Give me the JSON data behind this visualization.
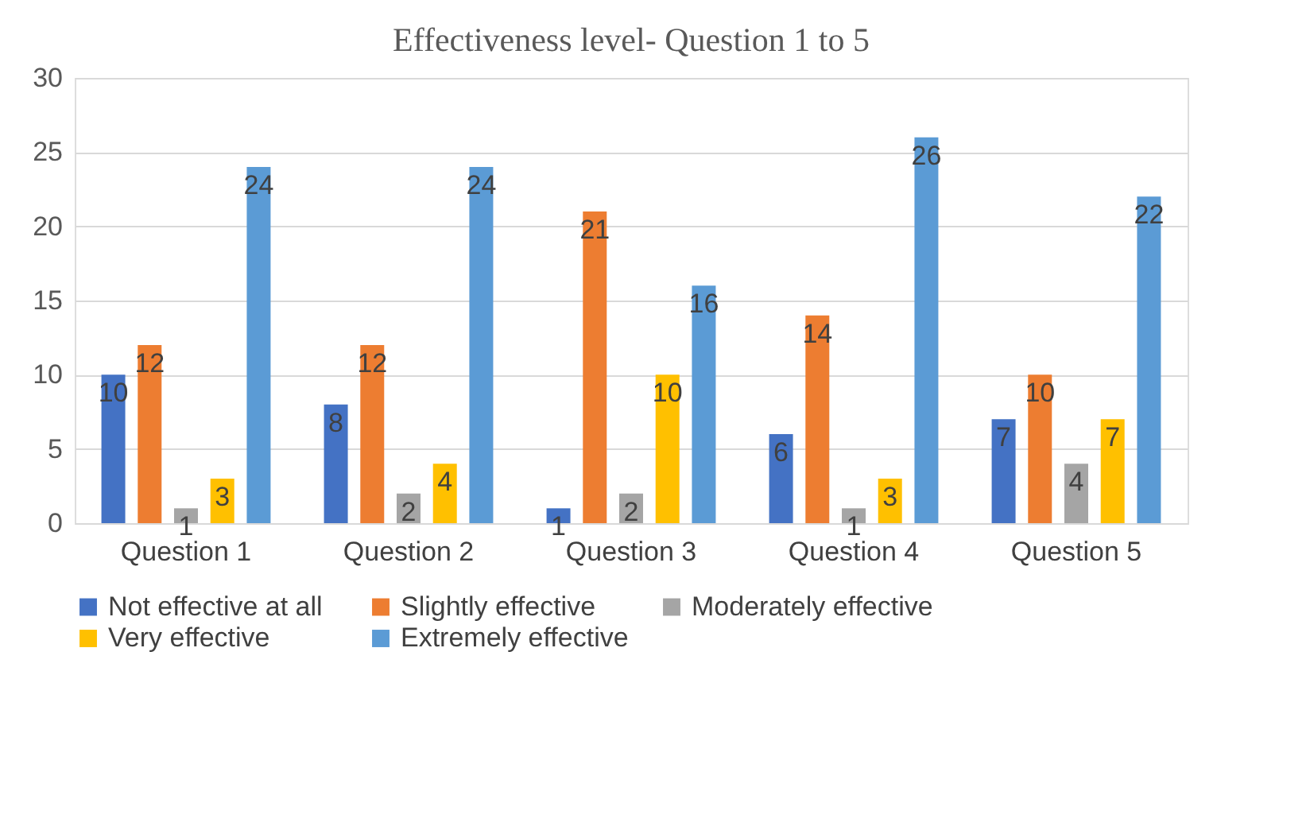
{
  "chart_data": {
    "type": "bar",
    "title": "Effectiveness level- Question 1 to 5",
    "categories": [
      "Question 1",
      "Question 2",
      "Question 3",
      "Question 4",
      "Question 5"
    ],
    "series": [
      {
        "name": "Not effective at   all",
        "color": "#4472c4",
        "values": [
          10,
          8,
          1,
          6,
          7
        ]
      },
      {
        "name": "Slightly effective",
        "color": "#ed7d31",
        "values": [
          12,
          12,
          21,
          14,
          10
        ]
      },
      {
        "name": "Moderately effective",
        "color": "#a5a5a5",
        "values": [
          1,
          2,
          2,
          1,
          4
        ]
      },
      {
        "name": "Very effective",
        "color": "#ffc000",
        "values": [
          3,
          4,
          10,
          3,
          7
        ]
      },
      {
        "name": "Extremely effective",
        "color": "#5b9bd5",
        "values": [
          24,
          24,
          16,
          26,
          22
        ]
      }
    ],
    "ylim": [
      0,
      30
    ],
    "yticks": [
      0,
      5,
      10,
      15,
      20,
      25,
      30
    ],
    "grid": "y",
    "legend": "bottom",
    "data_labels": true
  }
}
